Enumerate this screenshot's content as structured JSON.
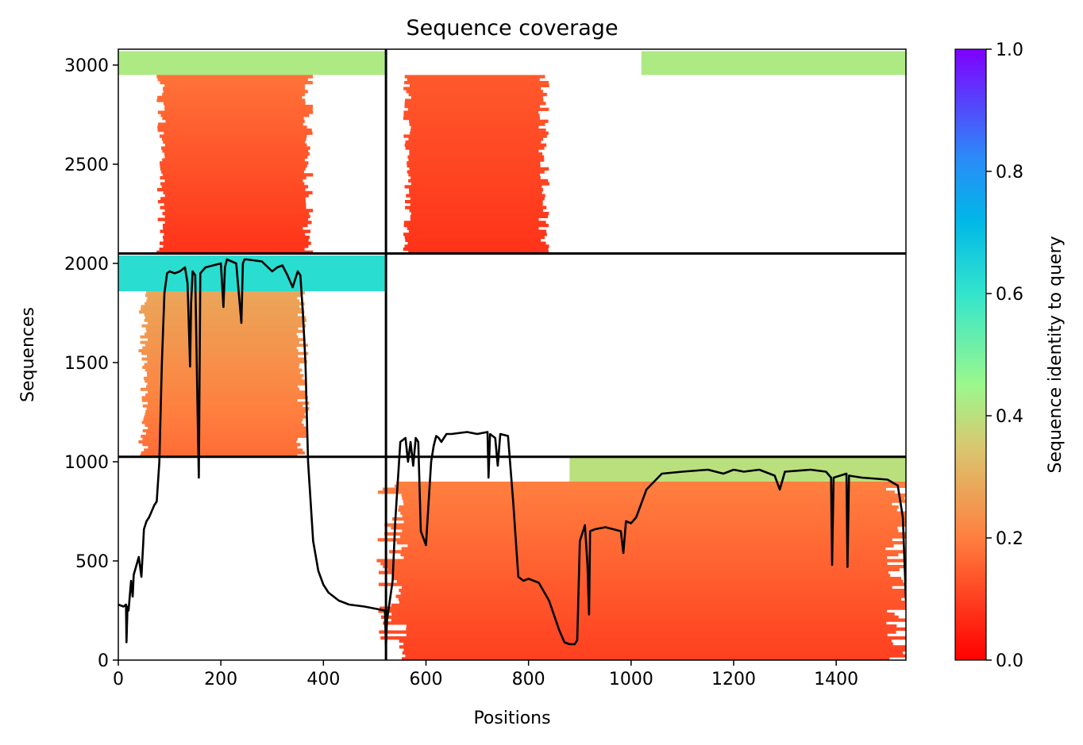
{
  "chart_data": {
    "type": "heatmap",
    "title": "Sequence coverage",
    "xlabel": "Positions",
    "ylabel": "Sequences",
    "xlim": [
      0,
      1536
    ],
    "ylim": [
      0,
      3080
    ],
    "x_ticks": [
      0,
      200,
      400,
      600,
      800,
      1000,
      1200,
      1400
    ],
    "y_ticks": [
      0,
      500,
      1000,
      1500,
      2000,
      2500,
      3000
    ],
    "colorbar": {
      "label": "Sequence identity to query",
      "range": [
        0,
        1
      ],
      "ticks": [
        "0.0",
        "0.2",
        "0.4",
        "0.6",
        "0.8",
        "1.0"
      ],
      "colormap": "rainbow_r"
    },
    "domain_boundaries": {
      "x": [
        522
      ],
      "y": [
        1025,
        2050
      ]
    },
    "blocks": [
      {
        "x_start": 0,
        "x_end": 522,
        "y_start": 2050,
        "y_end": 3080,
        "top_band": {
          "x_start": 0,
          "x_end": 522,
          "y_start": 2950,
          "y_end": 3070,
          "identity": 0.42
        },
        "core": {
          "x_start": 80,
          "x_end": 370,
          "y_start": 2050,
          "y_end": 2950,
          "identity_bottom": 0.08,
          "identity_top": 0.18
        }
      },
      {
        "x_start": 522,
        "x_end": 1536,
        "y_start": 2050,
        "y_end": 3080,
        "top_band": {
          "x_start": 1020,
          "x_end": 1536,
          "y_start": 2950,
          "y_end": 3070,
          "identity": 0.42
        },
        "core": {
          "x_start": 560,
          "x_end": 830,
          "y_start": 2050,
          "y_end": 2950,
          "identity_bottom": 0.08,
          "identity_top": 0.14
        }
      },
      {
        "x_start": 0,
        "x_end": 522,
        "y_start": 1025,
        "y_end": 2050,
        "top_band": {
          "x_start": 0,
          "x_end": 522,
          "y_start": 1860,
          "y_end": 2040,
          "identity": 0.62
        },
        "core": {
          "x_start": 45,
          "x_end": 360,
          "y_start": 1025,
          "y_end": 1860,
          "identity_bottom": 0.17,
          "identity_top": 0.28
        }
      },
      {
        "x_start": 522,
        "x_end": 1536,
        "y_start": 0,
        "y_end": 1025,
        "top_band": {
          "x_start": 880,
          "x_end": 1536,
          "y_start": 900,
          "y_end": 1020,
          "identity": 0.4
        },
        "core": {
          "x_start": 522,
          "x_end": 1536,
          "y_start": 0,
          "y_end": 900,
          "identity_bottom": 0.1,
          "identity_top": 0.2
        }
      }
    ],
    "coverage_line": {
      "x": [
        0,
        10,
        15,
        16,
        18,
        20,
        25,
        28,
        30,
        40,
        45,
        48,
        50,
        55,
        60,
        70,
        75,
        80,
        85,
        90,
        95,
        100,
        110,
        120,
        130,
        135,
        140,
        142,
        145,
        150,
        155,
        157,
        160,
        170,
        200,
        205,
        208,
        212,
        230,
        240,
        243,
        246,
        250,
        280,
        300,
        310,
        320,
        330,
        340,
        350,
        355,
        360,
        365,
        370,
        380,
        390,
        400,
        410,
        420,
        430,
        450,
        480,
        500,
        520,
        522,
        524,
        535,
        540,
        550,
        560,
        565,
        570,
        575,
        580,
        585,
        590,
        600,
        610,
        615,
        620,
        625,
        630,
        635,
        640,
        650,
        680,
        700,
        720,
        722,
        725,
        735,
        740,
        745,
        760,
        770,
        780,
        790,
        800,
        820,
        840,
        860,
        870,
        880,
        890,
        895,
        900,
        910,
        915,
        918,
        920,
        930,
        950,
        980,
        985,
        990,
        1000,
        1010,
        1030,
        1060,
        1100,
        1150,
        1180,
        1200,
        1220,
        1250,
        1280,
        1290,
        1300,
        1350,
        1380,
        1390,
        1392,
        1395,
        1420,
        1422,
        1425,
        1450,
        1500,
        1520,
        1530,
        1536
      ],
      "y": [
        280,
        270,
        280,
        90,
        270,
        250,
        400,
        320,
        430,
        520,
        420,
        560,
        660,
        700,
        720,
        780,
        800,
        1000,
        1500,
        1850,
        1950,
        1960,
        1950,
        1960,
        1980,
        1900,
        1480,
        1800,
        1960,
        1940,
        1200,
        920,
        1950,
        1980,
        2000,
        1780,
        1980,
        2020,
        2000,
        1700,
        2000,
        2020,
        2020,
        2010,
        1960,
        1980,
        1990,
        1940,
        1880,
        1960,
        1940,
        1750,
        1500,
        1000,
        600,
        450,
        380,
        340,
        320,
        300,
        280,
        270,
        260,
        250,
        70,
        200,
        400,
        700,
        1100,
        1120,
        1000,
        1100,
        980,
        1120,
        1100,
        650,
        580,
        1000,
        1080,
        1130,
        1120,
        1100,
        1120,
        1140,
        1140,
        1150,
        1140,
        1150,
        920,
        1140,
        1120,
        980,
        1140,
        1130,
        800,
        420,
        400,
        410,
        390,
        300,
        150,
        90,
        80,
        80,
        100,
        600,
        680,
        480,
        230,
        650,
        660,
        670,
        650,
        540,
        700,
        690,
        720,
        860,
        940,
        950,
        960,
        940,
        960,
        950,
        960,
        930,
        860,
        950,
        960,
        950,
        920,
        480,
        920,
        940,
        470,
        930,
        920,
        910,
        880,
        720,
        300
      ]
    }
  }
}
